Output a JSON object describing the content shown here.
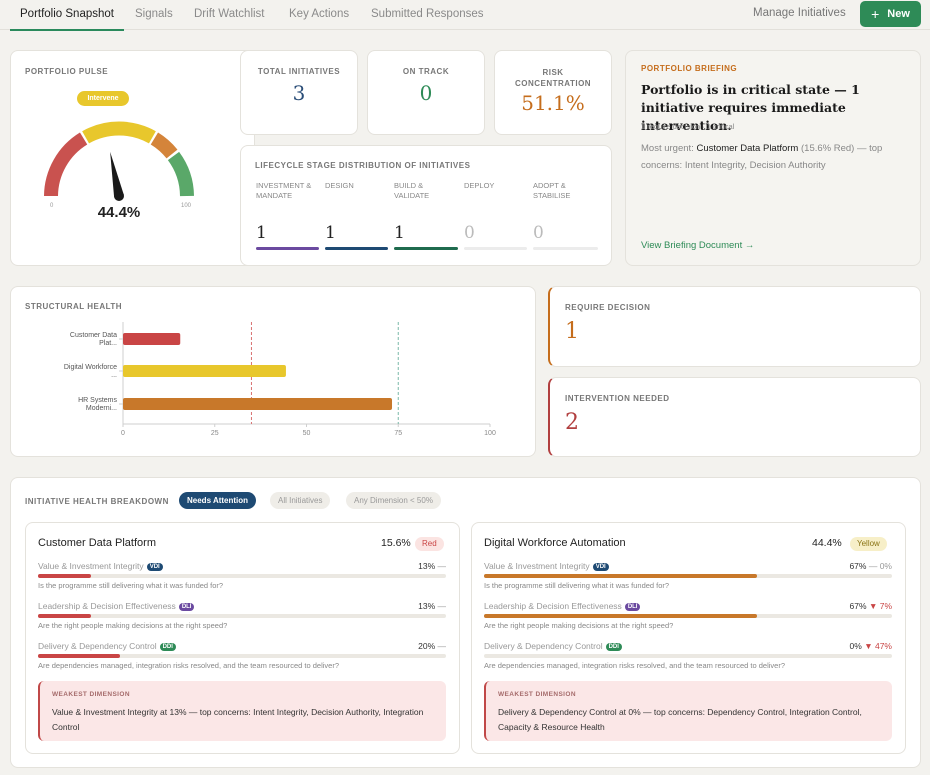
{
  "nav": {
    "tabs": [
      {
        "label": "Portfolio Snapshot"
      },
      {
        "label": "Signals"
      },
      {
        "label": "Drift Watchlist"
      },
      {
        "label": "Key Actions"
      },
      {
        "label": "Submitted Responses"
      }
    ],
    "manage_label": "Manage Initiatives",
    "new_label": "New",
    "new_icon": "plus-icon"
  },
  "pulse": {
    "label": "PORTFOLIO PULSE",
    "status_badge": "Intervene",
    "value_text": "44.4%",
    "value": 44.4,
    "min_label": "0",
    "max_label": "100",
    "colors": {
      "red": "#c9524f",
      "yellow": "#e8c72c",
      "orange": "#d4843a",
      "green": "#5aa869",
      "badge": "#e8c72c"
    }
  },
  "stats": {
    "total": {
      "label": "TOTAL INITIATIVES",
      "value": "3",
      "color": "#2b4e78"
    },
    "on_track": {
      "label": "ON TRACK",
      "value": "0",
      "color": "#2e8b57"
    },
    "risk": {
      "label": "RISK CONCENTRATION",
      "value": "51.1%",
      "color": "#c56d1c"
    }
  },
  "lifecycle": {
    "title": "LIFECYCLE STAGE DISTRIBUTION OF INITIATIVES",
    "stages": [
      {
        "name": "INVESTMENT & MANDATE",
        "count": "1",
        "color": "#6b4aa0"
      },
      {
        "name": "DESIGN",
        "count": "1",
        "color": "#1e4a73"
      },
      {
        "name": "BUILD & VALIDATE",
        "count": "1",
        "color": "#1f6b4e"
      },
      {
        "name": "DEPLOY",
        "count": "0",
        "color": "#ececec"
      },
      {
        "name": "ADOPT & STABILISE",
        "count": "0",
        "color": "#ececec"
      }
    ]
  },
  "briefing": {
    "label": "PORTFOLIO BRIEFING",
    "headline": "Portfolio is in critical state — 1 initiative requires immediate intervention.",
    "sub": "1 require decision · 1 critical",
    "urgent_prefix": "Most urgent: ",
    "urgent_name": "Customer Data Platform",
    "urgent_pct": " (15.6% Red)",
    "urgent_suffix": " — top concerns: Intent Integrity, Decision Authority",
    "link": "View Briefing Document →"
  },
  "structural": {
    "label": "STRUCTURAL HEALTH"
  },
  "chart_data": {
    "type": "bar",
    "orientation": "horizontal",
    "categories": [
      "Customer Data Plat...",
      "Digital Workforce ...",
      "HR Systems Moderni..."
    ],
    "values": [
      15.6,
      44.4,
      73.3
    ],
    "colors": [
      "#c94545",
      "#e8c72c",
      "#c8782a"
    ],
    "xlim": [
      0,
      100
    ],
    "xticks": [
      "0",
      "25",
      "50",
      "75",
      "100"
    ],
    "reference_lines": [
      {
        "value": 35,
        "color": "#d87070"
      },
      {
        "value": 75,
        "color": "#7ab8a8"
      }
    ],
    "title": "",
    "xlabel": "",
    "ylabel": ""
  },
  "require_decision": {
    "label": "REQUIRE DECISION",
    "value": "1",
    "color": "#c56d1c"
  },
  "intervention": {
    "label": "INTERVENTION NEEDED",
    "value": "2",
    "color": "#b13f3f"
  },
  "breakdown": {
    "label": "INITIATIVE HEALTH BREAKDOWN",
    "filters": [
      {
        "label": "Needs Attention",
        "active": true
      },
      {
        "label": "All Initiatives",
        "active": false
      },
      {
        "label": "Any Dimension < 50%",
        "active": false
      }
    ],
    "cards": [
      {
        "name": "Customer Data Platform",
        "score": "15.6%",
        "status": "Red",
        "dims": [
          {
            "name": "Value & Investment Integrity",
            "tag": "VDI",
            "tag_color": "#1e4a73",
            "pct": "13%",
            "delta": "—",
            "fill": 0.13,
            "fill_color": "#c94545",
            "question": "Is the programme still delivering what it was funded for?"
          },
          {
            "name": "Leadership & Decision Effectiveness",
            "tag": "DLI",
            "tag_color": "#6b4aa0",
            "pct": "13%",
            "delta": "—",
            "fill": 0.13,
            "fill_color": "#c94545",
            "question": "Are the right people making decisions at the right speed?"
          },
          {
            "name": "Delivery & Dependency Control",
            "tag": "DDI",
            "tag_color": "#2e8b57",
            "pct": "20%",
            "delta": "—",
            "fill": 0.2,
            "fill_color": "#c94545",
            "question": "Are dependencies managed, integration risks resolved, and the team resourced to deliver?"
          }
        ],
        "weakest_label": "WEAKEST DIMENSION",
        "weakest_text": "Value & Investment Integrity at 13% — top concerns: Intent Integrity, Decision Authority, Integration Control"
      },
      {
        "name": "Digital Workforce Automation",
        "score": "44.4%",
        "status": "Yellow",
        "dims": [
          {
            "name": "Value & Investment Integrity",
            "tag": "VDI",
            "tag_color": "#1e4a73",
            "pct": "67%",
            "delta": "— 0%",
            "fill": 0.67,
            "fill_color": "#c8782a",
            "question": "Is the programme still delivering what it was funded for?"
          },
          {
            "name": "Leadership & Decision Effectiveness",
            "tag": "DLI",
            "tag_color": "#6b4aa0",
            "pct": "67%",
            "delta": "▼ 7%",
            "fill": 0.67,
            "fill_color": "#c8782a",
            "question": "Are the right people making decisions at the right speed?"
          },
          {
            "name": "Delivery & Dependency Control",
            "tag": "DDI",
            "tag_color": "#2e8b57",
            "pct": "0%",
            "delta": "▼ 47%",
            "fill": 0,
            "fill_color": "#c8782a",
            "question": "Are dependencies managed, integration risks resolved, and the team resourced to deliver?"
          }
        ],
        "weakest_label": "WEAKEST DIMENSION",
        "weakest_text": "Delivery & Dependency Control at 0% — top concerns: Dependency Control, Integration Control, Capacity & Resource Health"
      }
    ]
  }
}
